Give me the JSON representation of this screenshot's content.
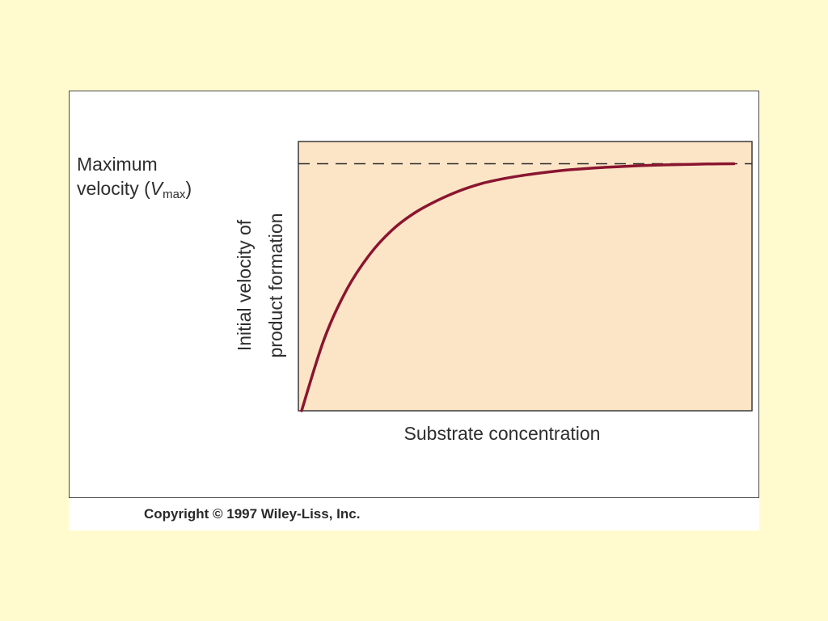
{
  "chart_data": {
    "type": "line",
    "title": "",
    "xlabel": "Substrate concentration",
    "ylabel_line1": "Initial velocity of",
    "ylabel_line2": "product formation",
    "reference_line": {
      "label_line1": "Maximum",
      "label_line2_prefix": "velocity (",
      "label_symbol": "V",
      "label_subscript": "max",
      "label_suffix": ")",
      "value": 1.0,
      "style": "dashed"
    },
    "xlim": [
      0,
      1
    ],
    "ylim": [
      0,
      1.09
    ],
    "grid": false,
    "x": [
      0,
      0.05,
      0.1,
      0.15,
      0.2,
      0.25,
      0.3,
      0.35,
      0.4,
      0.45,
      0.5,
      0.55,
      0.6,
      0.65,
      0.7,
      0.75,
      0.8,
      0.85,
      0.9,
      0.96
    ],
    "y": [
      0,
      0.29,
      0.49,
      0.63,
      0.73,
      0.8,
      0.85,
      0.89,
      0.92,
      0.94,
      0.955,
      0.967,
      0.976,
      0.983,
      0.988,
      0.992,
      0.995,
      0.997,
      0.999,
      1.0
    ],
    "colors": {
      "plot_background": "#FCE5C6",
      "curve": "#8A1530",
      "axis": "#3A3A3A",
      "page_background": "#FFFBCF"
    }
  },
  "footer": {
    "copyright": "Copyright © 1997 Wiley-Liss, Inc."
  }
}
